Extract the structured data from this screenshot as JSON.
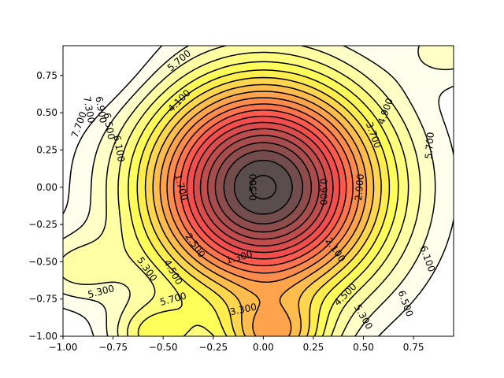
{
  "chart_data": {
    "type": "contour",
    "title": "",
    "xlabel": "",
    "ylabel": "",
    "xlim": [
      -1.0,
      0.95
    ],
    "ylim": [
      -1.0,
      0.95
    ],
    "x_ticks": [
      "−1.00",
      "−0.75",
      "−0.50",
      "−0.25",
      "0.00",
      "0.25",
      "0.50",
      "0.75"
    ],
    "x_tick_values": [
      -1.0,
      -0.75,
      -0.5,
      -0.25,
      0.0,
      0.25,
      0.5,
      0.75
    ],
    "y_ticks": [
      "−1.00",
      "−0.75",
      "−0.50",
      "−0.25",
      "0.00",
      "0.25",
      "0.50",
      "0.75"
    ],
    "y_tick_values": [
      -1.0,
      -0.75,
      -0.5,
      -0.25,
      0.0,
      0.25,
      0.5,
      0.75
    ],
    "grid": false,
    "colormap": "hot",
    "fill_alpha": 0.7,
    "line_color": "#000000",
    "levels": [
      0.1,
      0.5,
      0.9,
      1.3,
      1.7,
      2.1,
      2.5,
      2.9,
      3.3,
      3.7,
      4.1,
      4.5,
      4.9,
      5.3,
      5.7,
      6.1,
      6.5,
      6.9,
      7.3,
      7.7
    ],
    "contour_labels": [
      {
        "text": "0.500",
        "x": -0.05,
        "y": 0.0,
        "rot": -90
      },
      {
        "text": "0.900",
        "x": 0.3,
        "y": -0.03,
        "rot": 90
      },
      {
        "text": "1.300",
        "x": -0.12,
        "y": -0.47,
        "rot": -15
      },
      {
        "text": "1.700",
        "x": -0.41,
        "y": 0.0,
        "rot": 75
      },
      {
        "text": "2.100",
        "x": 0.36,
        "y": -0.42,
        "rot": 55
      },
      {
        "text": "2.500",
        "x": -0.34,
        "y": -0.39,
        "rot": 55
      },
      {
        "text": "2.900",
        "x": 0.48,
        "y": 0.0,
        "rot": -85
      },
      {
        "text": "3.300",
        "x": -0.1,
        "y": -0.82,
        "rot": -12
      },
      {
        "text": "3.700",
        "x": 0.55,
        "y": 0.35,
        "rot": 70
      },
      {
        "text": "4.100",
        "x": -0.42,
        "y": 0.58,
        "rot": -45
      },
      {
        "text": "4.500",
        "x": -0.45,
        "y": -0.57,
        "rot": 60
      },
      {
        "text": "4.500",
        "x": 0.41,
        "y": -0.72,
        "rot": -45
      },
      {
        "text": "4.900",
        "x": 0.61,
        "y": 0.51,
        "rot": -70
      },
      {
        "text": "5.300",
        "x": -0.58,
        "y": -0.55,
        "rot": 55
      },
      {
        "text": "5.300",
        "x": -0.81,
        "y": -0.7,
        "rot": -15
      },
      {
        "text": "5.300",
        "x": 0.5,
        "y": -0.87,
        "rot": 60
      },
      {
        "text": "5.700",
        "x": -0.42,
        "y": 0.85,
        "rot": -40
      },
      {
        "text": "5.700",
        "x": -0.45,
        "y": -0.75,
        "rot": -15
      },
      {
        "text": "5.700",
        "x": 0.83,
        "y": 0.28,
        "rot": -85
      },
      {
        "text": "6.100",
        "x": -0.72,
        "y": 0.26,
        "rot": 80
      },
      {
        "text": "6.100",
        "x": 0.82,
        "y": -0.48,
        "rot": 70
      },
      {
        "text": "6.500",
        "x": -0.77,
        "y": 0.41,
        "rot": 80
      },
      {
        "text": "6.500",
        "x": 0.71,
        "y": -0.78,
        "rot": 70
      },
      {
        "text": "6.900",
        "x": -0.81,
        "y": 0.52,
        "rot": 80
      },
      {
        "text": "7.300",
        "x": -0.87,
        "y": 0.52,
        "rot": 80
      },
      {
        "text": "7.700",
        "x": -0.92,
        "y": 0.42,
        "rot": -70
      }
    ]
  }
}
